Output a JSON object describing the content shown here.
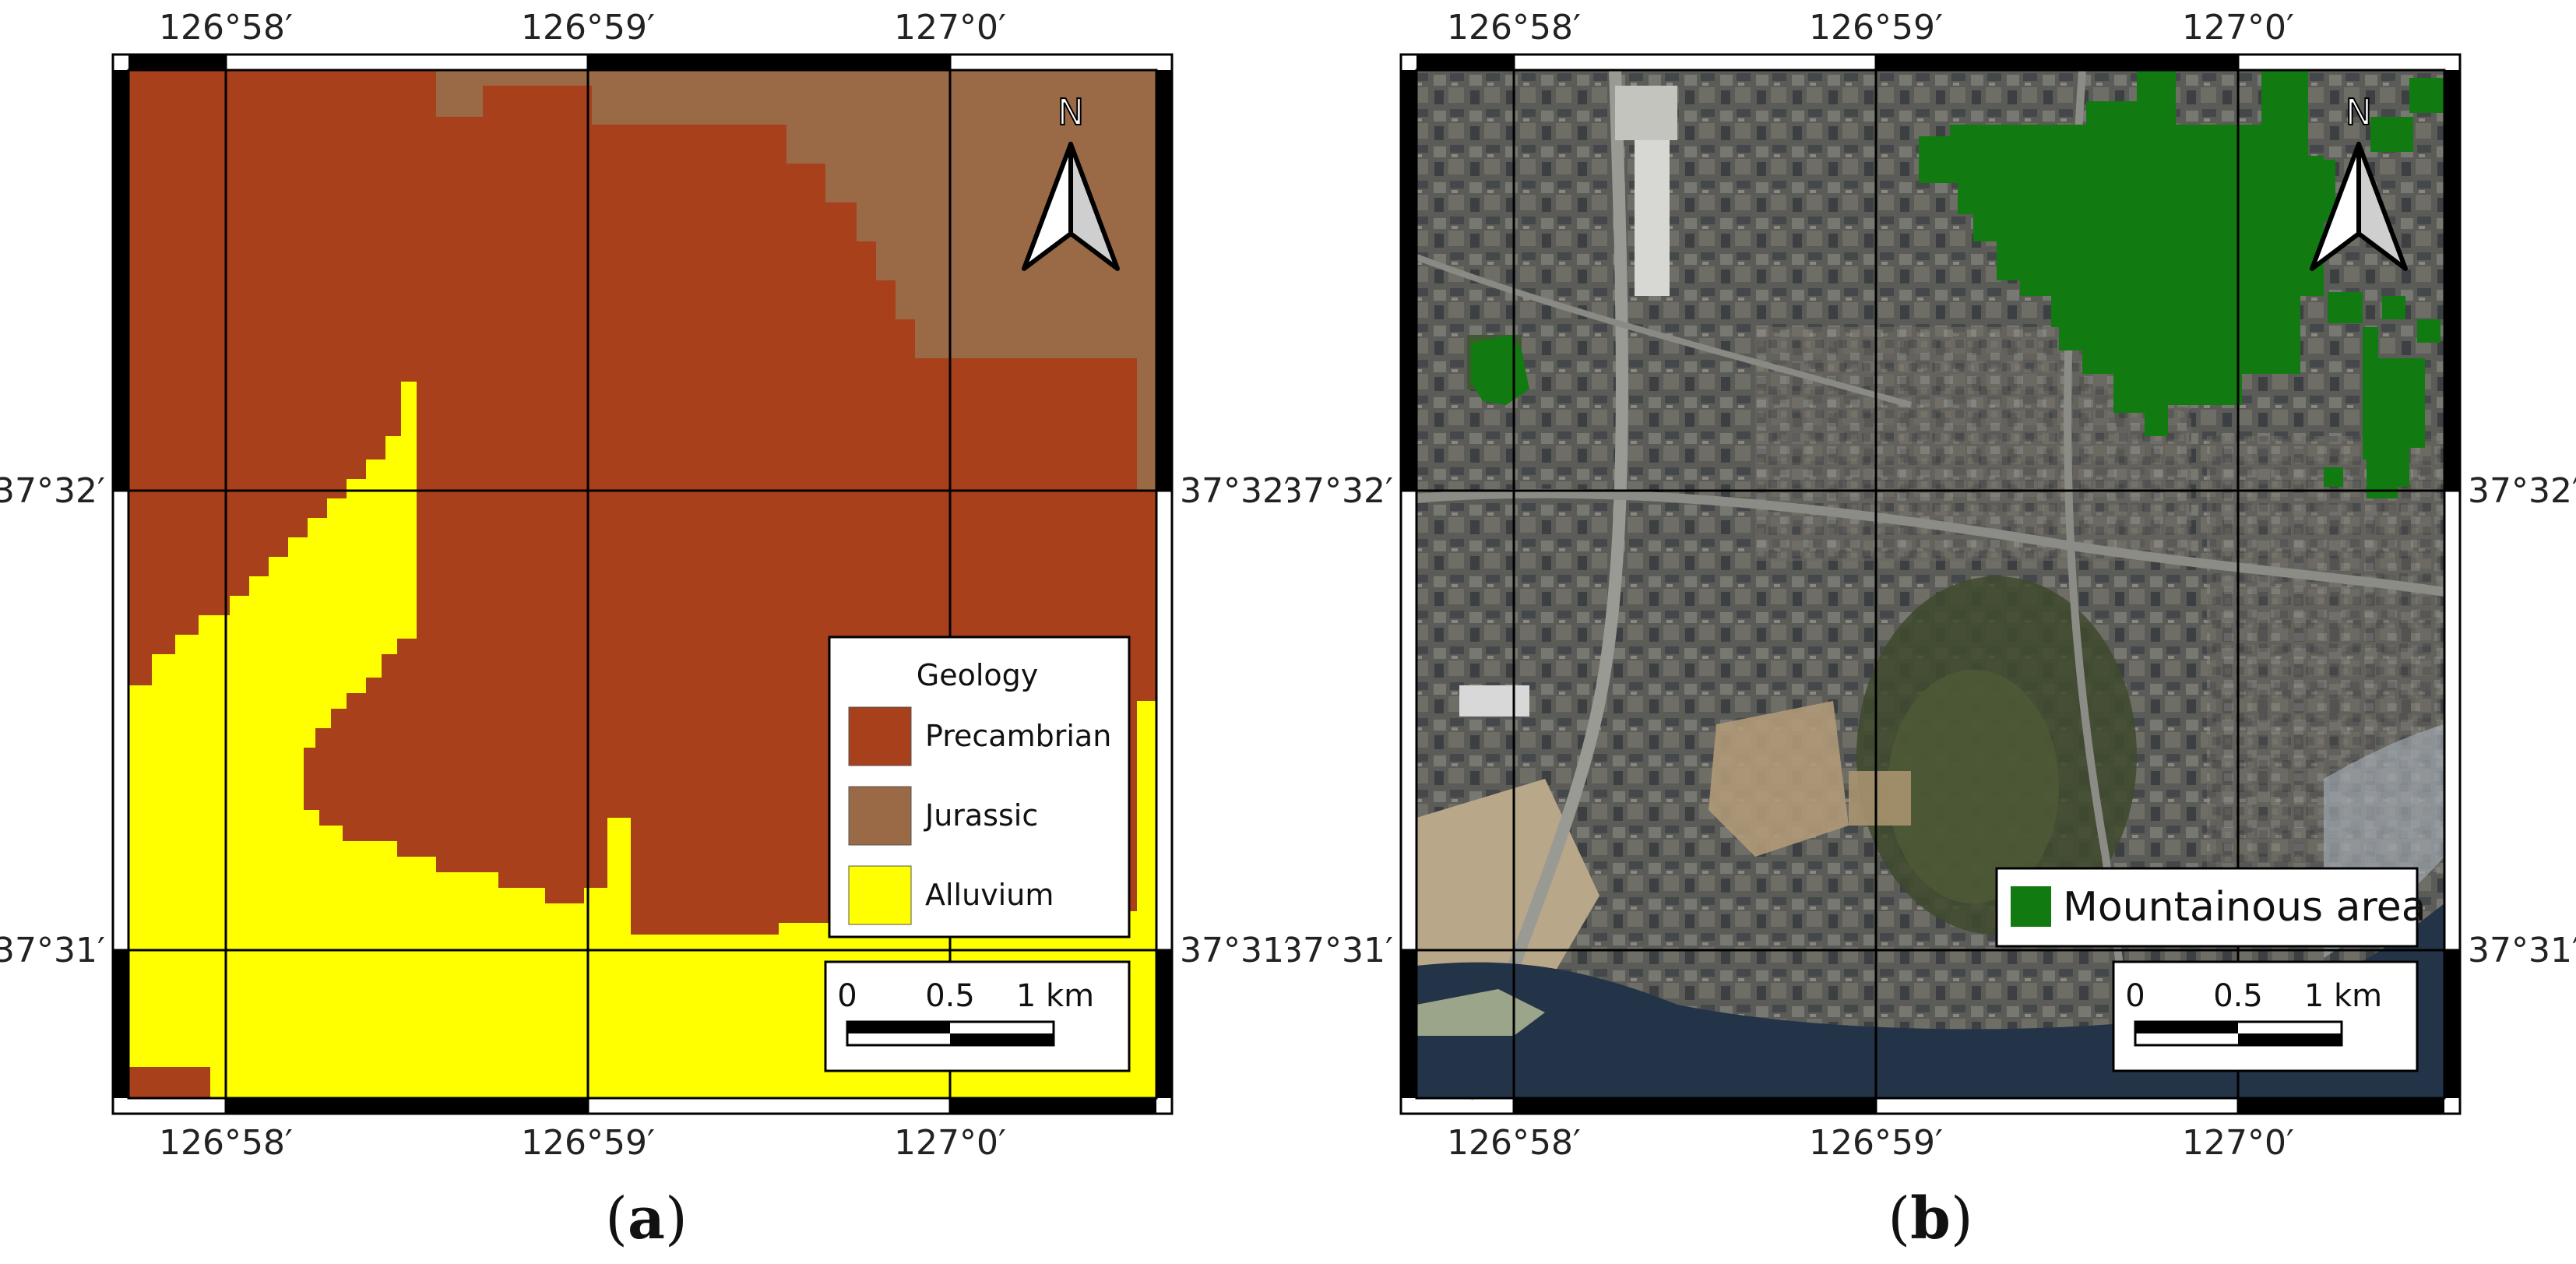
{
  "panel_a": {
    "caption_open": "(",
    "caption_letter": "a",
    "caption_close": ")",
    "lon_ticks": [
      "126°58′",
      "126°59′",
      "127°0′"
    ],
    "lat_ticks": [
      "37°32′",
      "37°31′"
    ],
    "north_label": "N",
    "legend": {
      "title": "Geology",
      "items": [
        {
          "label": "Precambrian",
          "color": "#a8401c"
        },
        {
          "label": "Jurassic",
          "color": "#9a6a47"
        },
        {
          "label": "Alluvium",
          "color": "#ffff00"
        }
      ]
    },
    "scale": {
      "labels": [
        "0",
        "0.5",
        "1 km"
      ]
    }
  },
  "panel_b": {
    "caption_open": "(",
    "caption_letter": "b",
    "caption_close": ")",
    "lon_ticks": [
      "126°58′",
      "126°59′",
      "127°0′"
    ],
    "lat_ticks": [
      "37°32′",
      "37°31′"
    ],
    "north_label": "N",
    "legend": {
      "items": [
        {
          "label": "Mountainous area",
          "color": "#117a11"
        }
      ]
    },
    "scale": {
      "labels": [
        "0",
        "0.5",
        "1 km"
      ]
    }
  }
}
